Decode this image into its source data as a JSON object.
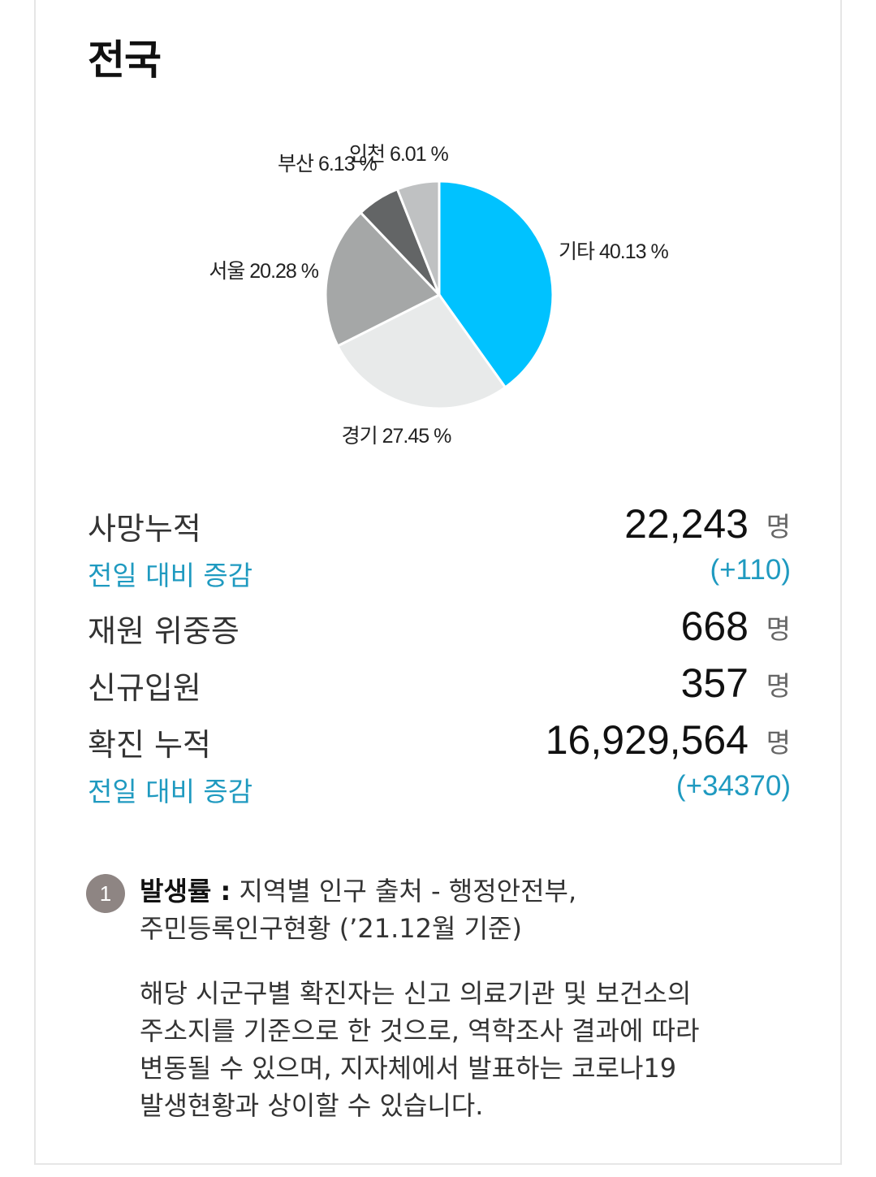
{
  "title": "전국",
  "chart_data": {
    "type": "pie",
    "slices": [
      {
        "name": "기타",
        "value": 40.13,
        "label": "기타 40.13 %",
        "color": "#00c2ff"
      },
      {
        "name": "경기",
        "value": 27.45,
        "label": "경기 27.45 %",
        "color": "#e8eaea"
      },
      {
        "name": "서울",
        "value": 20.28,
        "label": "서울 20.28 %",
        "color": "#a5a7a7"
      },
      {
        "name": "부산",
        "value": 6.13,
        "label": "부산 6.13 %",
        "color": "#636566"
      },
      {
        "name": "인천",
        "value": 6.01,
        "label": "인천 6.01 %",
        "color": "#bfc1c2"
      }
    ]
  },
  "stats": {
    "deaths_label": "사망누적",
    "deaths_value": "22,243",
    "deaths_unit": "명",
    "deaths_delta_label": "전일 대비 증감",
    "deaths_delta": "(+110)",
    "critical_label": "재원 위중증",
    "critical_value": "668",
    "critical_unit": "명",
    "admit_label": "신규입원",
    "admit_value": "357",
    "admit_unit": "명",
    "cases_label": "확진 누적",
    "cases_value": "16,929,564",
    "cases_unit": "명",
    "cases_delta_label": "전일 대비 증감",
    "cases_delta": "(+34370)"
  },
  "notes": {
    "badge": "1",
    "rate_title": "발생률 :",
    "rate_text": " 지역별 인구 출처 - 행정안전부,",
    "rate_text2": "주민등록인구현황 (’21.12월 기준)",
    "p1": "해당 시군구별 확진자는 신고 의료기관 및 보건소의",
    "p2": "주소지를 기준으로 한 것으로, 역학조사 결과에 따라",
    "p3": "변동될 수 있으며, 지자체에서 발표하는 코로나19",
    "p4": "발생현황과 상이할 수 있습니다."
  }
}
